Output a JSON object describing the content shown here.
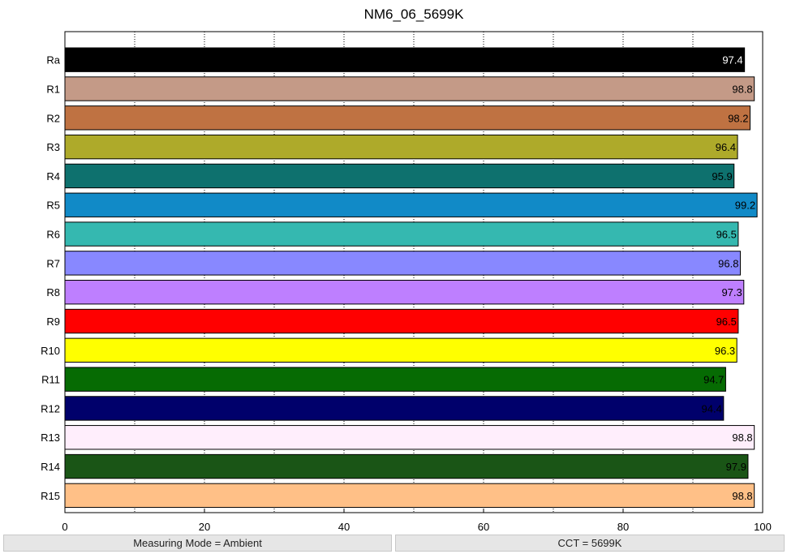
{
  "chart_data": {
    "type": "bar",
    "orientation": "horizontal",
    "title": "NM6_06_5699K",
    "xlabel": "",
    "ylabel": "",
    "xlim": [
      0,
      100
    ],
    "xticks": [
      0,
      20,
      40,
      60,
      80,
      100
    ],
    "grid": "vertical dotted",
    "categories": [
      "Ra",
      "R1",
      "R2",
      "R3",
      "R4",
      "R5",
      "R6",
      "R7",
      "R8",
      "R9",
      "R10",
      "R11",
      "R12",
      "R13",
      "R14",
      "R15"
    ],
    "values": [
      97.4,
      98.8,
      98.2,
      96.4,
      95.9,
      99.2,
      96.5,
      96.8,
      97.3,
      96.5,
      96.3,
      94.7,
      94.4,
      98.8,
      97.9,
      98.8
    ],
    "value_labels": [
      "97.4",
      "98.8",
      "98.2",
      "96.4",
      "95.9",
      "99.2",
      "96.5",
      "96.8",
      "97.3",
      "96.5",
      "96.3",
      "94.7",
      "94.4",
      "98.8",
      "97.9",
      "98.8"
    ],
    "colors": [
      "#000000",
      "#c49a87",
      "#bf7242",
      "#aeaa2a",
      "#0e716e",
      "#118ac7",
      "#35b8b0",
      "#8888ff",
      "#be7fff",
      "#ff0000",
      "#ffff00",
      "#066b03",
      "#00006b",
      "#ffeefc",
      "#1a5516",
      "#ffc087"
    ],
    "label_colors": [
      "#ffffff",
      "#000000",
      "#000000",
      "#000000",
      "#000000",
      "#000000",
      "#000000",
      "#000000",
      "#000000",
      "#000000",
      "#000000",
      "#000000",
      "#000000",
      "#000000",
      "#000000",
      "#000000"
    ]
  },
  "footer": {
    "measuring_mode": "Measuring Mode = Ambient",
    "cct": "CCT = 5699K"
  }
}
